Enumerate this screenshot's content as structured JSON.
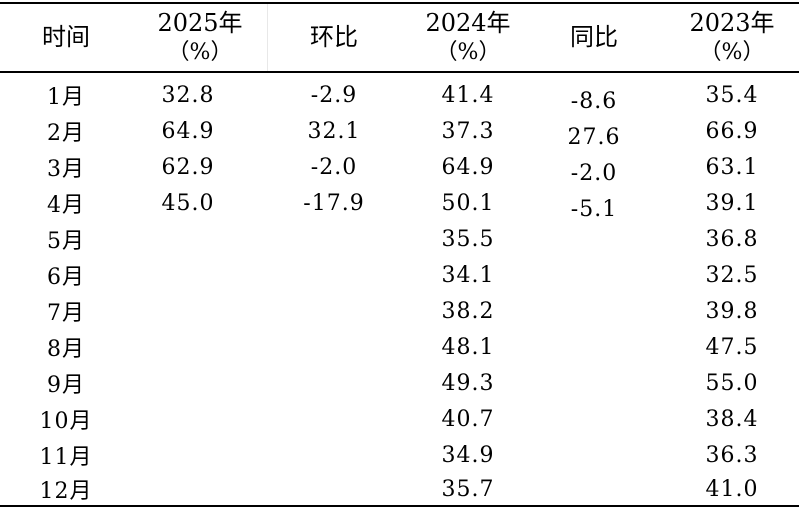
{
  "header": {
    "col_time": "时间",
    "col_2025": "2025年",
    "col_2025_unit": "（%）",
    "col_mom": "环比",
    "col_2024": "2024年",
    "col_2024_unit": "（%）",
    "col_yoy": "同比",
    "col_2023": "2023年",
    "col_2023_unit": "（%）"
  },
  "rows": [
    {
      "month": "1月",
      "v2025": "32.8",
      "mom": "-2.9",
      "v2024": "41.4",
      "yoy": "-8.6",
      "v2023": "35.4"
    },
    {
      "month": "2月",
      "v2025": "64.9",
      "mom": "32.1",
      "v2024": "37.3",
      "yoy": "27.6",
      "v2023": "66.9"
    },
    {
      "month": "3月",
      "v2025": "62.9",
      "mom": "-2.0",
      "v2024": "64.9",
      "yoy": "-2.0",
      "v2023": "63.1"
    },
    {
      "month": "4月",
      "v2025": "45.0",
      "mom": "-17.9",
      "v2024": "50.1",
      "yoy": "-5.1",
      "v2023": "39.1"
    },
    {
      "month": "5月",
      "v2025": "",
      "mom": "",
      "v2024": "35.5",
      "yoy": "",
      "v2023": "36.8"
    },
    {
      "month": "6月",
      "v2025": "",
      "mom": "",
      "v2024": "34.1",
      "yoy": "",
      "v2023": "32.5"
    },
    {
      "month": "7月",
      "v2025": "",
      "mom": "",
      "v2024": "38.2",
      "yoy": "",
      "v2023": "39.8"
    },
    {
      "month": "8月",
      "v2025": "",
      "mom": "",
      "v2024": "48.1",
      "yoy": "",
      "v2023": "47.5"
    },
    {
      "month": "9月",
      "v2025": "",
      "mom": "",
      "v2024": "49.3",
      "yoy": "",
      "v2023": "55.0"
    },
    {
      "month": "10月",
      "v2025": "",
      "mom": "",
      "v2024": "40.7",
      "yoy": "",
      "v2023": "38.4"
    },
    {
      "month": "11月",
      "v2025": "",
      "mom": "",
      "v2024": "34.9",
      "yoy": "",
      "v2023": "36.3"
    },
    {
      "month": "12月",
      "v2025": "",
      "mom": "",
      "v2024": "35.7",
      "yoy": "",
      "v2023": "41.0"
    }
  ]
}
